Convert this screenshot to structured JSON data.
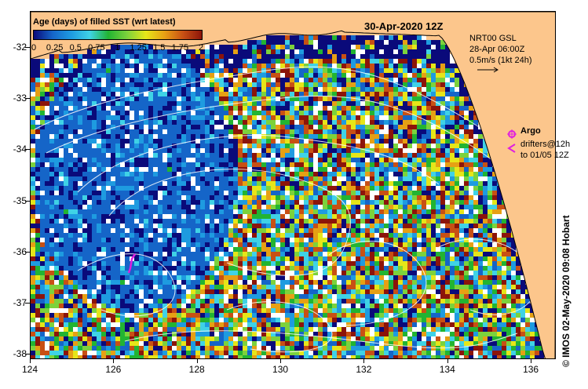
{
  "colorbar": {
    "title": "Age (days) of filled SST (wrt latest)",
    "tick_labels": [
      "0",
      "0.25",
      "0.5",
      "0.75",
      "1",
      "1.25",
      "1.5",
      "1.75",
      "2"
    ],
    "colors": [
      "#0a0a7a",
      "#1565c8",
      "#1e9be0",
      "#3fd2e6",
      "#22b432",
      "#7cd23c",
      "#e6e619",
      "#e6a014",
      "#c85014",
      "#8c140a"
    ]
  },
  "map": {
    "title": "30-Apr-2020 12Z",
    "xaxis": {
      "ticks": [
        124,
        126,
        128,
        130,
        132,
        134,
        136
      ],
      "range": [
        124,
        136.6
      ]
    },
    "yaxis": {
      "ticks": [
        -32,
        -33,
        -34,
        -35,
        -36,
        -37,
        -38
      ],
      "range": [
        -31.3,
        -38.1
      ]
    },
    "land_color": "#fcc68c"
  },
  "legend": {
    "nrt_lines": [
      "NRT00 GSL",
      "28-Apr 06:00Z",
      "0.5m/s (1kt 24h)"
    ],
    "argo_label": "Argo",
    "drifters_lines": [
      "drifters@12h",
      "to 01/05 12Z"
    ],
    "argo_color": "#e01ee0"
  },
  "credit": "© IMOS 02-May-2020 09:08 Hobart"
}
